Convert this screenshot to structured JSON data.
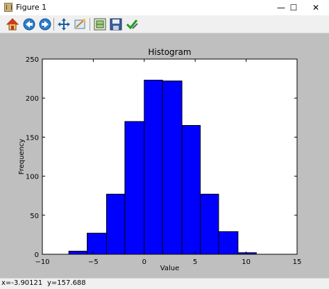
{
  "window": {
    "title": "Figure 1",
    "minimize_glyph": "—",
    "maximize_glyph": "☐",
    "close_glyph": "✕"
  },
  "toolbar": {
    "buttons": [
      {
        "name": "home-icon"
      },
      {
        "name": "back-icon"
      },
      {
        "name": "forward-icon"
      },
      {
        "name": "pan-icon"
      },
      {
        "name": "zoom-icon"
      },
      {
        "name": "subplots-icon"
      },
      {
        "name": "save-icon"
      },
      {
        "name": "edit-check-icon"
      }
    ]
  },
  "status": {
    "x_readout": "x=-3.90121",
    "y_readout": "y=157.688"
  },
  "chart_data": {
    "type": "bar",
    "title": "Histogram",
    "xlabel": "Value",
    "ylabel": "Frequency",
    "xlim": [
      -10,
      15
    ],
    "ylim": [
      0,
      250
    ],
    "xticks": [
      -10,
      -5,
      0,
      5,
      10,
      15
    ],
    "yticks": [
      0,
      50,
      100,
      150,
      200,
      250
    ],
    "bin_edges": [
      -7.4,
      -5.6,
      -3.7,
      -1.9,
      0.0,
      1.8,
      3.7,
      5.5,
      7.3,
      9.2,
      11.0
    ],
    "values": [
      4,
      27,
      77,
      170,
      223,
      222,
      165,
      77,
      29,
      2
    ],
    "bar_color": "#0000ff",
    "background": "#bfbfbf",
    "grid": false
  }
}
